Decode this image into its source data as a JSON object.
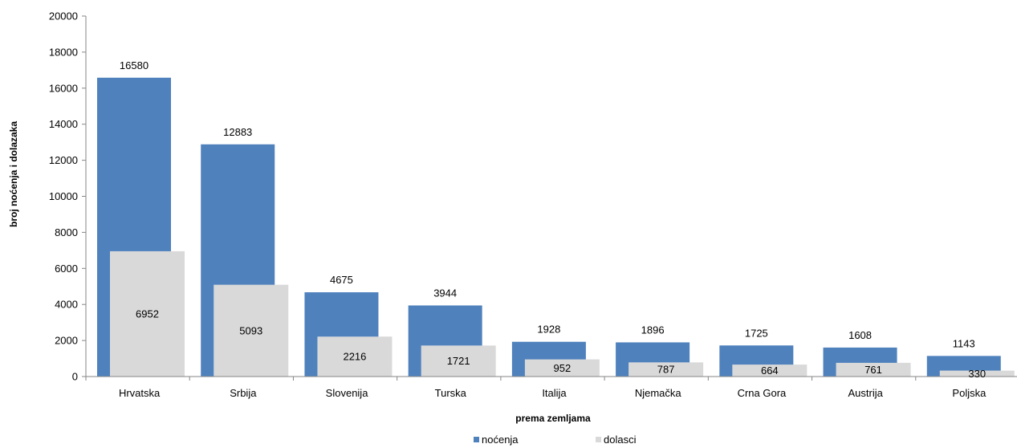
{
  "chart_data": {
    "type": "bar",
    "layout": "overlapped",
    "categories": [
      "Hrvatska",
      "Srbija",
      "Slovenija",
      "Turska",
      "Italija",
      "Njemačka",
      "Crna Gora",
      "Austrija",
      "Poljska"
    ],
    "series": [
      {
        "name": "noćenja",
        "color": "#4F81BD",
        "values": [
          16580,
          12883,
          4675,
          3944,
          1928,
          1896,
          1725,
          1608,
          1143
        ]
      },
      {
        "name": "dolasci",
        "color": "#D9D9D9",
        "values": [
          6952,
          5093,
          2216,
          1721,
          952,
          787,
          664,
          761,
          330
        ]
      }
    ],
    "xlabel": "prema zemljama",
    "ylabel": "broj noćenja i dolazaka",
    "ylim": [
      0,
      20000
    ],
    "yticks": [
      0,
      2000,
      4000,
      6000,
      8000,
      10000,
      12000,
      14000,
      16000,
      18000,
      20000
    ],
    "grid": false,
    "legend": "bottom"
  }
}
